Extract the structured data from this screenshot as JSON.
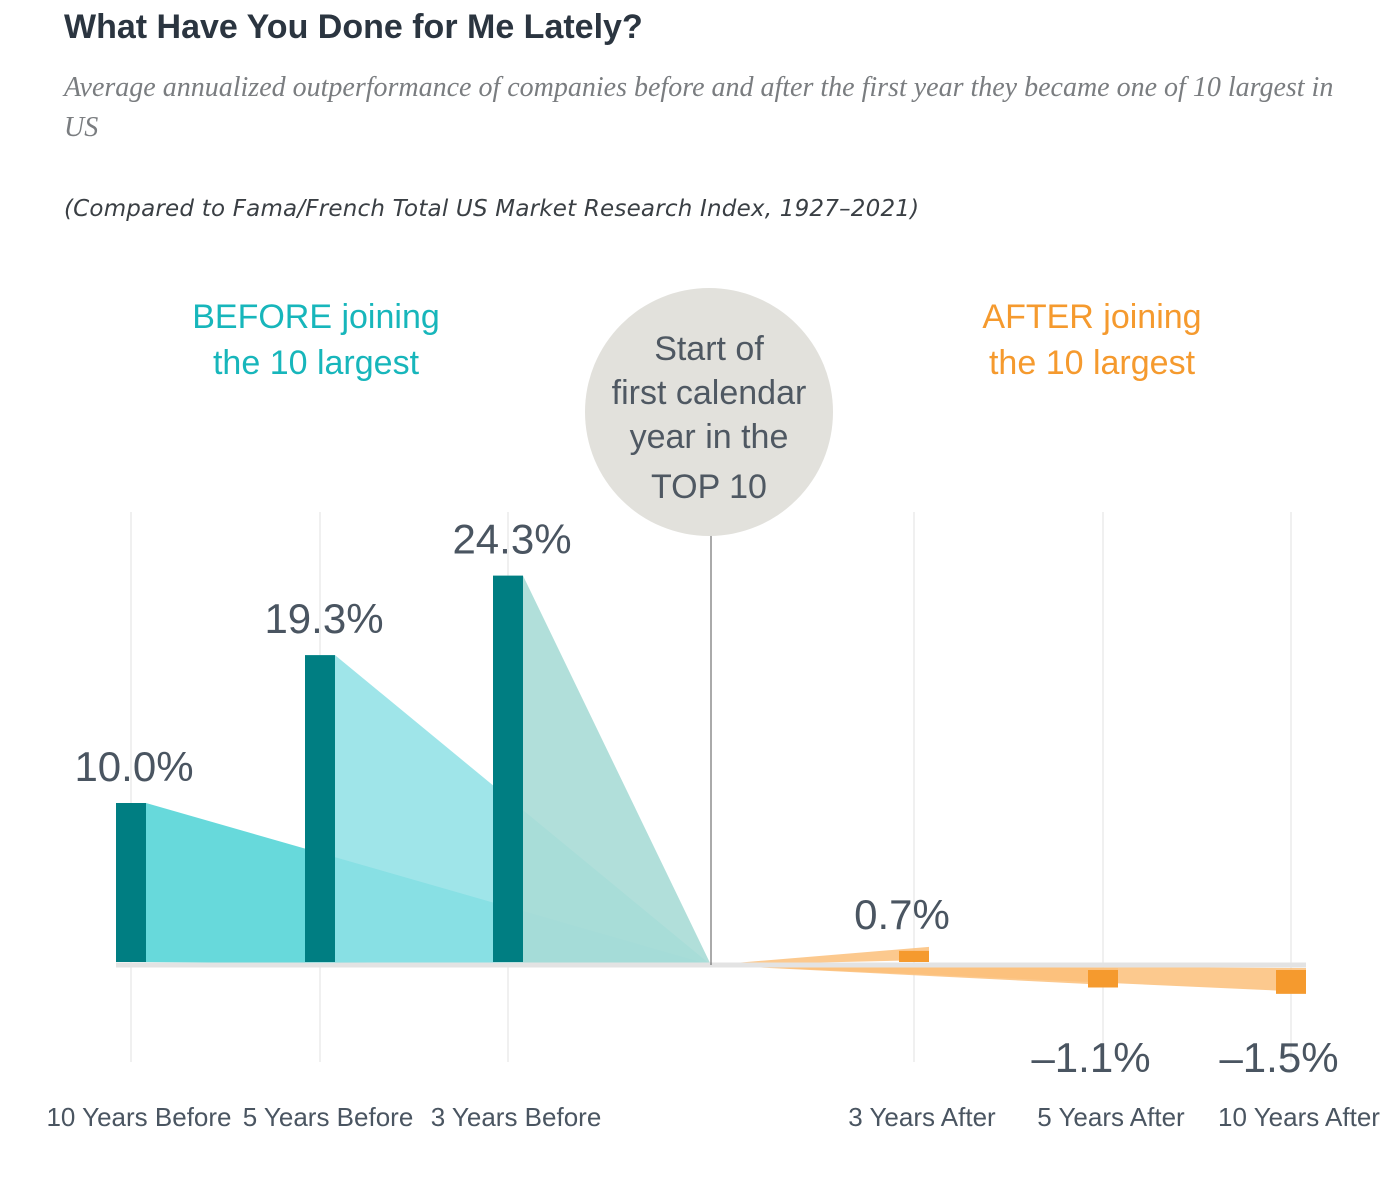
{
  "header": {
    "title": "What Have You Done for Me Lately?",
    "subtitle": "Average annualized outperformance of companies before and after the first year they became one of 10 largest in US",
    "note": "(Compared to Fama/French Total US Market Research Index, 1927–2021)"
  },
  "chart_data": {
    "type": "bar",
    "title": "What Have You Done for Me Lately?",
    "subtitle": "Average annualized outperformance of companies before and after the first year they became one of 10 largest in US",
    "categories": [
      "10 Years Before",
      "5 Years Before",
      "3 Years Before",
      "3 Years After",
      "5 Years After",
      "10 Years After"
    ],
    "values": [
      10.0,
      19.3,
      24.3,
      0.7,
      -1.1,
      -1.5
    ],
    "value_labels": [
      "10.0%",
      "19.3%",
      "24.3%",
      "0.7%",
      "–1.1%",
      "–1.5%"
    ],
    "units": "%",
    "groups": {
      "before": {
        "label_line1": "BEFORE joining",
        "label_line2": "the 10 largest",
        "color": "#17b6bb"
      },
      "after": {
        "label_line1": "AFTER joining",
        "label_line2": "the 10 largest",
        "color": "#f59a2e"
      }
    },
    "center_label": [
      "Start of",
      "first calendar",
      "year in the",
      "TOP 10"
    ],
    "ylim": [
      -2,
      30
    ],
    "grid": false,
    "legend": "none"
  },
  "colors": {
    "bar_before": "#007e82",
    "wedge_before_1": "#5ad6d8",
    "wedge_before_2": "#8ee1e5",
    "wedge_before_3": "#a9dcd6",
    "bar_after": "#f59a2e",
    "wedge_after": "#fbbf7a",
    "circle": "#e2e1dc",
    "value_text": "#4a5561",
    "axis_text": "#4a5561"
  }
}
